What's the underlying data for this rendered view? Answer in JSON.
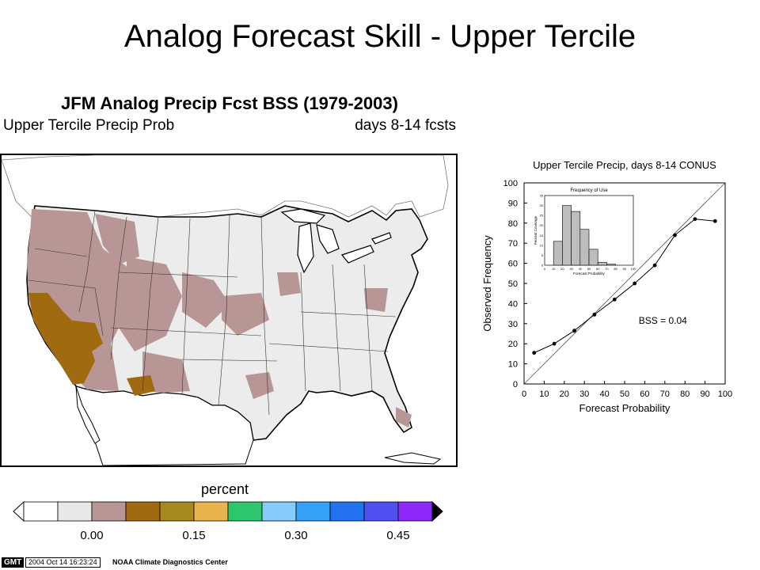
{
  "slide": {
    "title": "Analog Forecast Skill - Upper Tercile"
  },
  "map": {
    "title": "JFM Analog Precip Fcst BSS (1979-2003)",
    "subtitle_left": "Upper Tercile Precip Prob",
    "subtitle_right": "days 8-14 fcsts",
    "colors": {
      "land": "#ececec",
      "ocean": "#ffffff",
      "border": "#000000"
    }
  },
  "colorbar": {
    "label": "percent",
    "colors": [
      "#ffffff",
      "#e8e8e8",
      "#b99696",
      "#a06a10",
      "#a68a1e",
      "#e8b44e",
      "#2ec66c",
      "#86ccfa",
      "#35a2f8",
      "#2272f0",
      "#5050f0",
      "#8c28f8"
    ],
    "ticks": [
      "0.00",
      "0.15",
      "0.30",
      "0.45"
    ]
  },
  "footer": {
    "logo": "GMT",
    "timestamp": "2004 Oct 14 16:23:24",
    "organization": "NOAA Climate Diagnostics Center"
  },
  "chart_data": [
    {
      "type": "line",
      "title": "Upper Tercile Precip, days 8-14 CONUS",
      "xlabel": "Forecast Probability",
      "ylabel": "Observed Frequency",
      "xlim": [
        0,
        100
      ],
      "ylim": [
        0,
        100
      ],
      "xticks": [
        "0",
        "10",
        "20",
        "30",
        "40",
        "50",
        "60",
        "70",
        "80",
        "90",
        "100"
      ],
      "yticks": [
        "0",
        "10",
        "20",
        "30",
        "40",
        "50",
        "60",
        "70",
        "80",
        "90",
        "100"
      ],
      "diagonal": true,
      "annotation": "BSS = 0.04",
      "series": [
        {
          "x": [
            5,
            15,
            25,
            35,
            45,
            55,
            65,
            75,
            85,
            95
          ],
          "values": [
            15.5,
            20,
            26.5,
            34.5,
            42,
            50,
            59,
            74,
            82,
            81
          ]
        }
      ]
    },
    {
      "type": "bar",
      "title": "Frequency of Use",
      "xlabel": "Forecast Probability",
      "ylabel": "Percent Coverage",
      "xlim": [
        0,
        100
      ],
      "ylim": [
        0,
        35
      ],
      "xticks": [
        "0",
        "10",
        "20",
        "30",
        "40",
        "50",
        "60",
        "70",
        "80",
        "90",
        "100"
      ],
      "yticks": [
        "0",
        "5",
        "10",
        "15",
        "20",
        "25",
        "30",
        "35"
      ],
      "bin_edges": [
        0,
        10,
        20,
        30,
        40,
        50,
        60,
        70,
        80,
        90,
        100
      ],
      "values": [
        0,
        12,
        30,
        27,
        18,
        8,
        1.5,
        0.5,
        0,
        0
      ]
    }
  ]
}
